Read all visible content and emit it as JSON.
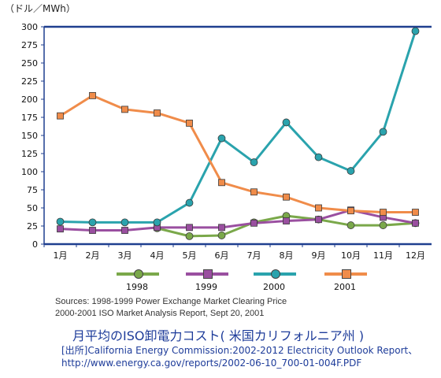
{
  "chart_data": {
    "type": "line",
    "unit_label": "（ドル／MWh）",
    "categories": [
      "1月",
      "2月",
      "3月",
      "4月",
      "5月",
      "6月",
      "7月",
      "8月",
      "9月",
      "10月",
      "11月",
      "12月"
    ],
    "ylim": [
      0,
      300
    ],
    "yticks": [
      0,
      25,
      50,
      75,
      100,
      125,
      150,
      175,
      200,
      225,
      250,
      275,
      300
    ],
    "grid": false,
    "legend_position": "bottom",
    "series": [
      {
        "name": "1998",
        "color": "#7aa84a",
        "marker": "circle",
        "values": [
          null,
          null,
          null,
          22,
          11,
          12,
          30,
          39,
          34,
          26,
          26,
          29
        ]
      },
      {
        "name": "1999",
        "color": "#9a4fa0",
        "marker": "square",
        "values": [
          21,
          19,
          19,
          23,
          23,
          23,
          29,
          32,
          34,
          47,
          37,
          29
        ]
      },
      {
        "name": "2000",
        "color": "#2aa3ad",
        "marker": "circle",
        "values": [
          31,
          30,
          30,
          30,
          57,
          146,
          113,
          168,
          120,
          101,
          155,
          294
        ]
      },
      {
        "name": "2001",
        "color": "#f08c4a",
        "marker": "square",
        "values": [
          177,
          205,
          186,
          181,
          167,
          85,
          72,
          65,
          50,
          46,
          44,
          44
        ]
      }
    ]
  },
  "sources": {
    "line1": "Sources: 1998-1999 Power Exchange Market Clearing Price",
    "line2": "2000-2001 ISO Market Analysis Report, Sept 20, 2001"
  },
  "title": "月平均のISO卸電力コスト( 米国カリフォルニア州 )",
  "reference": {
    "line1": "[出所]California Energy Commission:2002-2012 Electricity Outlook Report、",
    "line2": "http://www.energy.ca.gov/reports/2002-06-10_700-01-004F.PDF"
  }
}
